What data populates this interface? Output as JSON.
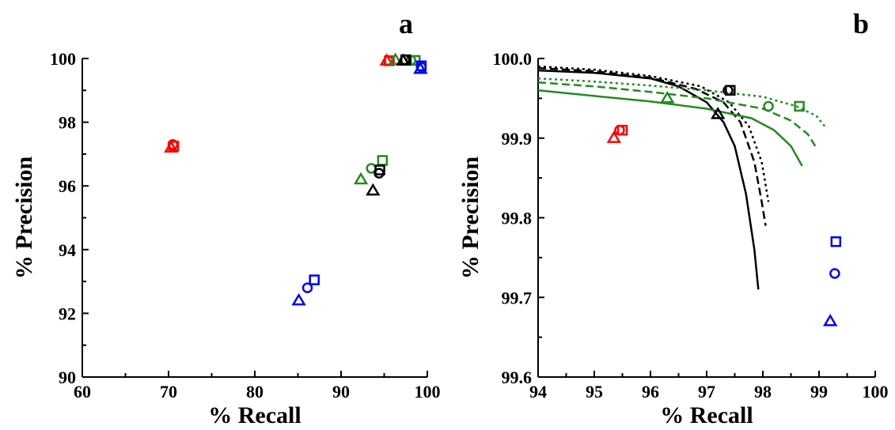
{
  "chart_data": [
    {
      "panel": "a",
      "type": "scatter",
      "xlabel": "% Recall",
      "ylabel": "% Precision",
      "xlim": [
        60,
        100
      ],
      "ylim": [
        90,
        100
      ],
      "xticks": [
        "60",
        "70",
        "80",
        "90",
        "100"
      ],
      "yticks": [
        "90",
        "92",
        "94",
        "96",
        "98",
        "100"
      ],
      "grid": false,
      "series": [
        {
          "color": "#ff0000",
          "points": [
            {
              "x": 70.3,
              "y": 97.2,
              "marker": "triangle"
            },
            {
              "x": 70.5,
              "y": 97.3,
              "marker": "circle"
            },
            {
              "x": 70.6,
              "y": 97.25,
              "marker": "square"
            },
            {
              "x": 95.3,
              "y": 99.93,
              "marker": "triangle"
            },
            {
              "x": 95.5,
              "y": 99.93,
              "marker": "circle"
            },
            {
              "x": 95.6,
              "y": 99.93,
              "marker": "square"
            }
          ]
        },
        {
          "color": "#228b22",
          "points": [
            {
              "x": 92.3,
              "y": 96.2,
              "marker": "triangle"
            },
            {
              "x": 93.5,
              "y": 96.55,
              "marker": "circle"
            },
            {
              "x": 94.8,
              "y": 96.8,
              "marker": "square"
            },
            {
              "x": 96.3,
              "y": 99.95,
              "marker": "triangle"
            },
            {
              "x": 98.1,
              "y": 99.94,
              "marker": "circle"
            },
            {
              "x": 98.6,
              "y": 99.94,
              "marker": "square"
            }
          ]
        },
        {
          "color": "#000000",
          "points": [
            {
              "x": 93.7,
              "y": 95.85,
              "marker": "triangle"
            },
            {
              "x": 94.4,
              "y": 96.4,
              "marker": "circle"
            },
            {
              "x": 94.5,
              "y": 96.5,
              "marker": "square"
            },
            {
              "x": 97.2,
              "y": 99.93,
              "marker": "triangle"
            },
            {
              "x": 97.4,
              "y": 99.96,
              "marker": "circle"
            },
            {
              "x": 97.5,
              "y": 99.96,
              "marker": "square"
            }
          ]
        },
        {
          "color": "#0000ff",
          "points": [
            {
              "x": 85.1,
              "y": 92.4,
              "marker": "triangle"
            },
            {
              "x": 86.1,
              "y": 92.8,
              "marker": "circle"
            },
            {
              "x": 86.9,
              "y": 93.05,
              "marker": "square"
            },
            {
              "x": 99.2,
              "y": 99.67,
              "marker": "triangle"
            },
            {
              "x": 99.3,
              "y": 99.73,
              "marker": "circle"
            },
            {
              "x": 99.3,
              "y": 99.77,
              "marker": "square"
            }
          ]
        }
      ]
    },
    {
      "panel": "b",
      "type": "scatter",
      "xlabel": "% Recall",
      "ylabel": "% Precision",
      "xlim": [
        94,
        100
      ],
      "ylim": [
        99.6,
        100.0
      ],
      "xticks": [
        "94",
        "95",
        "96",
        "97",
        "98",
        "99",
        "100"
      ],
      "yticks": [
        "99.6",
        "99.7",
        "99.8",
        "99.9",
        "100.0"
      ],
      "grid": false,
      "series": [
        {
          "color": "#ff0000",
          "points": [
            {
              "x": 95.35,
              "y": 99.9,
              "marker": "triangle"
            },
            {
              "x": 95.45,
              "y": 99.91,
              "marker": "circle"
            },
            {
              "x": 95.5,
              "y": 99.91,
              "marker": "square"
            }
          ]
        },
        {
          "color": "#228b22",
          "points": [
            {
              "x": 96.3,
              "y": 99.95,
              "marker": "triangle"
            },
            {
              "x": 98.1,
              "y": 99.94,
              "marker": "circle"
            },
            {
              "x": 98.65,
              "y": 99.94,
              "marker": "square"
            }
          ]
        },
        {
          "color": "#000000",
          "points": [
            {
              "x": 97.2,
              "y": 99.93,
              "marker": "triangle"
            },
            {
              "x": 97.38,
              "y": 99.96,
              "marker": "circle"
            },
            {
              "x": 97.42,
              "y": 99.96,
              "marker": "square"
            }
          ]
        },
        {
          "color": "#0000ff",
          "points": [
            {
              "x": 99.2,
              "y": 99.67,
              "marker": "triangle"
            },
            {
              "x": 99.28,
              "y": 99.73,
              "marker": "circle"
            },
            {
              "x": 99.3,
              "y": 99.77,
              "marker": "square"
            }
          ]
        }
      ],
      "curves": [
        {
          "color": "#000000",
          "dash": "solid",
          "points": [
            [
              94.0,
              99.985
            ],
            [
              95.0,
              99.982
            ],
            [
              96.0,
              99.975
            ],
            [
              96.5,
              99.965
            ],
            [
              97.0,
              99.945
            ],
            [
              97.3,
              99.92
            ],
            [
              97.5,
              99.89
            ],
            [
              97.7,
              99.83
            ],
            [
              97.85,
              99.76
            ],
            [
              97.92,
              99.71
            ]
          ]
        },
        {
          "color": "#000000",
          "dash": "dashed",
          "points": [
            [
              94.0,
              99.988
            ],
            [
              95.0,
              99.984
            ],
            [
              96.0,
              99.976
            ],
            [
              96.8,
              99.962
            ],
            [
              97.3,
              99.945
            ],
            [
              97.6,
              99.92
            ],
            [
              97.85,
              99.87
            ],
            [
              97.98,
              99.82
            ],
            [
              98.05,
              99.79
            ]
          ]
        },
        {
          "color": "#000000",
          "dash": "dotted",
          "points": [
            [
              94.0,
              99.99
            ],
            [
              95.0,
              99.986
            ],
            [
              96.0,
              99.978
            ],
            [
              96.9,
              99.965
            ],
            [
              97.4,
              99.945
            ],
            [
              97.75,
              99.915
            ],
            [
              97.98,
              99.87
            ],
            [
              98.1,
              99.82
            ]
          ]
        },
        {
          "color": "#228b22",
          "dash": "solid",
          "points": [
            [
              94.0,
              99.96
            ],
            [
              95.0,
              99.953
            ],
            [
              96.0,
              99.946
            ],
            [
              97.0,
              99.937
            ],
            [
              97.8,
              99.925
            ],
            [
              98.2,
              99.91
            ],
            [
              98.5,
              99.89
            ],
            [
              98.7,
              99.865
            ]
          ]
        },
        {
          "color": "#228b22",
          "dash": "dashed",
          "points": [
            [
              94.0,
              99.97
            ],
            [
              95.0,
              99.965
            ],
            [
              96.0,
              99.958
            ],
            [
              97.0,
              99.95
            ],
            [
              98.0,
              99.937
            ],
            [
              98.5,
              99.922
            ],
            [
              98.8,
              99.905
            ],
            [
              98.95,
              99.888
            ]
          ]
        },
        {
          "color": "#228b22",
          "dash": "dotted",
          "points": [
            [
              94.0,
              99.975
            ],
            [
              95.0,
              99.971
            ],
            [
              96.0,
              99.966
            ],
            [
              97.0,
              99.96
            ],
            [
              98.0,
              99.952
            ],
            [
              98.6,
              99.94
            ],
            [
              98.95,
              99.928
            ],
            [
              99.1,
              99.915
            ]
          ]
        }
      ]
    }
  ]
}
